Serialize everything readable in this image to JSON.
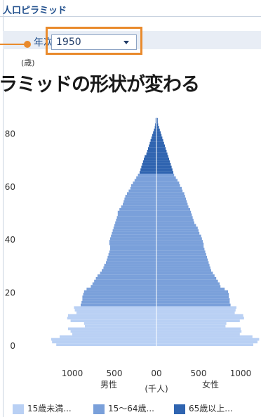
{
  "header": {
    "title": "人口ピラミッド"
  },
  "year_selector": {
    "label": "年次",
    "value": "1950"
  },
  "banner": {
    "text": "ラミッドの形状が変わる"
  },
  "colors": {
    "child": "#b9d0f4",
    "working": "#7aa0da",
    "elderly": "#2f64b0",
    "highlight": "#e98a2c",
    "title": "#1f4e8c"
  },
  "icons": {
    "dropdown": "chevron-down-icon",
    "pointer": "arrow-pointer-icon"
  },
  "chart_data": {
    "type": "bar",
    "orientation": "horizontal-pyramid",
    "y_axis_label": "(歳)",
    "x_axis_label": "(千人)",
    "male_label": "男性",
    "female_label": "女性",
    "y_ticks": [
      "0",
      "20",
      "40",
      "60",
      "80"
    ],
    "y_tick_values": [
      0,
      20,
      40,
      60,
      80
    ],
    "y_range": [
      -1,
      86
    ],
    "x_ticks": [
      "1000",
      "500",
      "00",
      "500",
      "1000"
    ],
    "x_tick_values": [
      -1000,
      -500,
      0,
      500,
      1000
    ],
    "x_range": [
      -1300,
      1300
    ],
    "grid": false,
    "legend_position": "bottom",
    "series": [
      {
        "name": "15歳未満...",
        "ages": [
          0,
          14
        ]
      },
      {
        "name": "15〜64歳...",
        "ages": [
          15,
          64
        ]
      },
      {
        "name": "65歳以上...",
        "ages": [
          65,
          85
        ]
      }
    ],
    "ages": [
      0,
      1,
      2,
      3,
      4,
      5,
      6,
      7,
      8,
      9,
      10,
      11,
      12,
      13,
      14,
      15,
      16,
      17,
      18,
      19,
      20,
      21,
      22,
      23,
      24,
      25,
      26,
      27,
      28,
      29,
      30,
      31,
      32,
      33,
      34,
      35,
      36,
      37,
      38,
      39,
      40,
      41,
      42,
      43,
      44,
      45,
      46,
      47,
      48,
      49,
      50,
      51,
      52,
      53,
      54,
      55,
      56,
      57,
      58,
      59,
      60,
      61,
      62,
      63,
      64,
      65,
      66,
      67,
      68,
      69,
      70,
      71,
      72,
      73,
      74,
      75,
      76,
      77,
      78,
      79,
      80,
      81,
      82,
      83,
      84,
      85
    ],
    "male": [
      1190,
      1240,
      1250,
      1150,
      1000,
      1020,
      1050,
      850,
      860,
      1020,
      1060,
      1050,
      950,
      970,
      980,
      900,
      890,
      880,
      880,
      870,
      860,
      830,
      780,
      760,
      740,
      720,
      700,
      670,
      650,
      630,
      620,
      600,
      590,
      580,
      570,
      560,
      550,
      550,
      560,
      560,
      550,
      540,
      530,
      520,
      510,
      500,
      490,
      480,
      470,
      460,
      460,
      440,
      420,
      400,
      390,
      380,
      370,
      350,
      330,
      310,
      300,
      280,
      260,
      240,
      220,
      200,
      190,
      180,
      170,
      160,
      150,
      140,
      120,
      110,
      100,
      90,
      80,
      70,
      60,
      50,
      40,
      30,
      20,
      15,
      10,
      10
    ],
    "female": [
      1150,
      1200,
      1220,
      1140,
      990,
      1010,
      1000,
      820,
      830,
      990,
      1040,
      1030,
      930,
      940,
      950,
      880,
      870,
      870,
      860,
      860,
      850,
      810,
      760,
      750,
      730,
      710,
      690,
      670,
      650,
      640,
      630,
      620,
      610,
      600,
      590,
      580,
      570,
      560,
      560,
      550,
      540,
      530,
      510,
      500,
      490,
      470,
      450,
      440,
      430,
      420,
      410,
      400,
      380,
      370,
      360,
      350,
      340,
      330,
      310,
      300,
      280,
      270,
      250,
      230,
      210,
      200,
      190,
      180,
      170,
      160,
      150,
      140,
      130,
      120,
      110,
      100,
      90,
      80,
      70,
      60,
      50,
      40,
      30,
      20,
      15,
      15
    ]
  },
  "legend": [
    {
      "label": "15歳未満..."
    },
    {
      "label": "15〜64歳..."
    },
    {
      "label": "65歳以上..."
    }
  ]
}
